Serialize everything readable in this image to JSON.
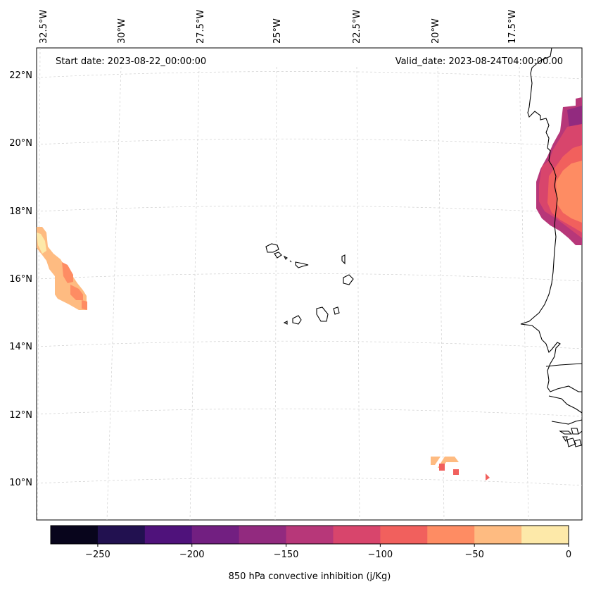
{
  "header": {
    "start_date": "Start date: 2023-08-22_00:00:00",
    "valid_date": "Valid_date: 2023-08-24T04:00:00.00"
  },
  "map": {
    "lon_labels": [
      "32.5°W",
      "30°W",
      "27.5°W",
      "25°W",
      "22.5°W",
      "20°W",
      "17.5°W"
    ],
    "lat_labels": [
      "22°N",
      "20°N",
      "18°N",
      "16°N",
      "14°N",
      "12°N",
      "10°N"
    ]
  },
  "colorbar": {
    "label": "850 hPa convective inhibition (j/Kg)",
    "ticks": [
      "−250",
      "−200",
      "−150",
      "−100",
      "−50",
      "0"
    ],
    "colors": [
      "#08051c",
      "#221150",
      "#4f127b",
      "#721f81",
      "#922a7f",
      "#b73779",
      "#d8456c",
      "#f1605d",
      "#fe8c63",
      "#febb81",
      "#fde9a9"
    ]
  }
}
